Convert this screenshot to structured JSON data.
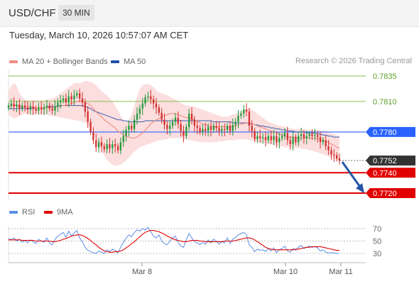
{
  "header": {
    "pair": "USD/CHF",
    "timeframe": "30 MIN",
    "datetime": "Tuesday, March 10, 2026 10:57:07 AM CET"
  },
  "legend": {
    "ma20_label": "MA 20 + Bollinger Bands",
    "ma50_label": "MA 50",
    "credit": "Research © 2026 Trading Central",
    "rsi_label": "RSI",
    "ma9_label": "9MA"
  },
  "colors": {
    "ma20": "#f28b82",
    "ma50": "#1f4fa8",
    "band_fill": "#fbd3d3",
    "up": "#1f9a3a",
    "down": "#d32f2f",
    "resistance": "#8cbe50",
    "pivot": "#2962ff",
    "support": "#e00000",
    "current": "#333333",
    "rsi": "#5b8fe6",
    "rsi_ma": "#e00000",
    "arrow": "#2456a6"
  },
  "chart_data": [
    {
      "type": "line",
      "title": "USD/CHF",
      "ylim": [
        0.7715,
        0.784
      ],
      "x_ticks": [
        "Mar 8",
        "Mar 10",
        "Mar 11"
      ],
      "levels": [
        {
          "label": "0.7835",
          "value": 0.7835,
          "kind": "resistance"
        },
        {
          "label": "0.7810",
          "value": 0.781,
          "kind": "resistance"
        },
        {
          "label": "0.7780",
          "value": 0.778,
          "kind": "pivot"
        },
        {
          "label": "0.7752",
          "value": 0.7752,
          "kind": "current"
        },
        {
          "label": "0.7740",
          "value": 0.774,
          "kind": "support"
        },
        {
          "label": "0.7720",
          "value": 0.772,
          "kind": "support"
        }
      ],
      "close": [
        0.7806,
        0.7808,
        0.7805,
        0.7807,
        0.7803,
        0.7806,
        0.7804,
        0.7802,
        0.7805,
        0.7803,
        0.7801,
        0.7804,
        0.7802,
        0.7804,
        0.7806,
        0.7803,
        0.7801,
        0.7805,
        0.7809,
        0.7811,
        0.7813,
        0.7809,
        0.7815,
        0.7812,
        0.7816,
        0.7818,
        0.7813,
        0.7809,
        0.78,
        0.779,
        0.778,
        0.7772,
        0.7765,
        0.777,
        0.7766,
        0.7763,
        0.7768,
        0.7764,
        0.7768,
        0.7766,
        0.7762,
        0.777,
        0.7776,
        0.7782,
        0.7786,
        0.7783,
        0.7792,
        0.7798,
        0.7803,
        0.7808,
        0.7814,
        0.7815,
        0.7812,
        0.7808,
        0.7804,
        0.7799,
        0.7792,
        0.7787,
        0.7783,
        0.7786,
        0.779,
        0.7794,
        0.7788,
        0.7781,
        0.7776,
        0.7785,
        0.7798,
        0.7792,
        0.7786,
        0.7784,
        0.778,
        0.7783,
        0.7781,
        0.7785,
        0.7782,
        0.7786,
        0.7784,
        0.7781,
        0.7783,
        0.7782,
        0.7786,
        0.7781,
        0.7787,
        0.779,
        0.7796,
        0.7798,
        0.7802,
        0.78,
        0.7786,
        0.7781,
        0.7773,
        0.7776,
        0.7774,
        0.7775,
        0.7772,
        0.7776,
        0.7772,
        0.7776,
        0.777,
        0.7774,
        0.7776,
        0.7779,
        0.7772,
        0.7768,
        0.7775,
        0.777,
        0.7776,
        0.7778,
        0.7774,
        0.7776,
        0.7778,
        0.7776,
        0.7777,
        0.7775,
        0.777,
        0.7772,
        0.7766,
        0.7762,
        0.7758,
        0.7757,
        0.7754,
        0.7752
      ],
      "ma20": [
        0.7805,
        0.7806,
        0.7806,
        0.7806,
        0.7805,
        0.7805,
        0.7805,
        0.7805,
        0.7805,
        0.7804,
        0.7804,
        0.7804,
        0.7804,
        0.7804,
        0.7804,
        0.7804,
        0.7804,
        0.7804,
        0.7805,
        0.7805,
        0.7806,
        0.7806,
        0.7807,
        0.7808,
        0.7809,
        0.781,
        0.781,
        0.781,
        0.7809,
        0.7808,
        0.7806,
        0.7803,
        0.78,
        0.7797,
        0.7795,
        0.7792,
        0.779,
        0.7788,
        0.7786,
        0.7784,
        0.7781,
        0.7779,
        0.7777,
        0.7776,
        0.7775,
        0.7774,
        0.7774,
        0.7775,
        0.7777,
        0.7779,
        0.7782,
        0.7785,
        0.7788,
        0.779,
        0.7792,
        0.7793,
        0.7795,
        0.7796,
        0.7797,
        0.7798,
        0.7798,
        0.7798,
        0.7797,
        0.7796,
        0.7795,
        0.7794,
        0.7794,
        0.7793,
        0.7792,
        0.7791,
        0.7789,
        0.7788,
        0.7787,
        0.7786,
        0.7786,
        0.7785,
        0.7785,
        0.7785,
        0.7785,
        0.7785,
        0.7785,
        0.7785,
        0.7785,
        0.7786,
        0.7787,
        0.7788,
        0.7788,
        0.7789,
        0.7789,
        0.7788,
        0.7787,
        0.7786,
        0.7785,
        0.7784,
        0.7783,
        0.7782,
        0.7781,
        0.778,
        0.7779,
        0.7778,
        0.7777,
        0.7776,
        0.7775,
        0.7775,
        0.7775,
        0.7775,
        0.7774,
        0.7774,
        0.7774,
        0.7774,
        0.7774,
        0.7774,
        0.7774,
        0.7773,
        0.7773,
        0.7772,
        0.7771,
        0.777,
        0.7768,
        0.7767,
        0.7765,
        0.7764
      ],
      "ma50": [
        0.7803,
        0.7803,
        0.7803,
        0.7803,
        0.7803,
        0.7803,
        0.7803,
        0.7803,
        0.7803,
        0.7803,
        0.7804,
        0.7804,
        0.7804,
        0.7804,
        0.7804,
        0.7805,
        0.7805,
        0.7805,
        0.7805,
        0.7806,
        0.7806,
        0.7806,
        0.7806,
        0.7806,
        0.7806,
        0.7806,
        0.7806,
        0.7806,
        0.7805,
        0.7804,
        0.7803,
        0.7801,
        0.78,
        0.7799,
        0.7798,
        0.7797,
        0.7796,
        0.7795,
        0.7794,
        0.7793,
        0.7792,
        0.7792,
        0.7791,
        0.7791,
        0.779,
        0.779,
        0.779,
        0.779,
        0.779,
        0.779,
        0.7791,
        0.7791,
        0.7791,
        0.7791,
        0.7791,
        0.7791,
        0.7791,
        0.7791,
        0.7791,
        0.7791,
        0.7791,
        0.7791,
        0.7791,
        0.7791,
        0.7791,
        0.7791,
        0.7791,
        0.7791,
        0.7791,
        0.7791,
        0.7791,
        0.7791,
        0.7791,
        0.7791,
        0.7791,
        0.779,
        0.779,
        0.779,
        0.779,
        0.779,
        0.779,
        0.779,
        0.7789,
        0.7789,
        0.7789,
        0.7789,
        0.7789,
        0.7789,
        0.7788,
        0.7788,
        0.7787,
        0.7787,
        0.7786,
        0.7786,
        0.7785,
        0.7785,
        0.7784,
        0.7784,
        0.7783,
        0.7783,
        0.7782,
        0.7782,
        0.7781,
        0.7781,
        0.7781,
        0.778,
        0.778,
        0.778,
        0.778,
        0.7779,
        0.7779,
        0.7779,
        0.7779,
        0.7778,
        0.7778,
        0.7777,
        0.7777,
        0.7776,
        0.7776,
        0.7775,
        0.7775,
        0.7775
      ],
      "band_upper": [
        0.782,
        0.7825,
        0.7828,
        0.7825,
        0.7818,
        0.7814,
        0.7812,
        0.7811,
        0.7811,
        0.7811,
        0.7811,
        0.7811,
        0.7811,
        0.7811,
        0.7812,
        0.7812,
        0.7813,
        0.7814,
        0.7816,
        0.7818,
        0.782,
        0.7822,
        0.7824,
        0.7826,
        0.7828,
        0.7828,
        0.7828,
        0.7829,
        0.783,
        0.783,
        0.7829,
        0.7828,
        0.7826,
        0.7823,
        0.782,
        0.7818,
        0.7816,
        0.7813,
        0.781,
        0.7806,
        0.7801,
        0.7796,
        0.7792,
        0.779,
        0.7792,
        0.7797,
        0.7806,
        0.7815,
        0.7822,
        0.7826,
        0.7827,
        0.7827,
        0.7826,
        0.7824,
        0.7821,
        0.7819,
        0.7818,
        0.7817,
        0.7816,
        0.7815,
        0.7813,
        0.7812,
        0.781,
        0.7808,
        0.7807,
        0.7806,
        0.7806,
        0.7805,
        0.7805,
        0.7804,
        0.7803,
        0.7802,
        0.7801,
        0.78,
        0.7799,
        0.7798,
        0.7797,
        0.7796,
        0.7795,
        0.7795,
        0.7795,
        0.7796,
        0.7797,
        0.7798,
        0.7799,
        0.78,
        0.7801,
        0.7802,
        0.7803,
        0.7802,
        0.78,
        0.7798,
        0.7796,
        0.7794,
        0.7792,
        0.779,
        0.7789,
        0.7788,
        0.7787,
        0.7786,
        0.7786,
        0.7785,
        0.7784,
        0.7784,
        0.7783,
        0.7783,
        0.7783,
        0.7783,
        0.7783,
        0.7782,
        0.7782,
        0.7782,
        0.7782,
        0.7782,
        0.7781,
        0.7781,
        0.7781,
        0.778,
        0.7779,
        0.7778,
        0.7777,
        0.7776
      ],
      "band_lower": [
        0.7797,
        0.7795,
        0.7793,
        0.7794,
        0.7796,
        0.7797,
        0.7798,
        0.7798,
        0.7798,
        0.7797,
        0.7797,
        0.7797,
        0.7797,
        0.7797,
        0.7797,
        0.7796,
        0.7796,
        0.7795,
        0.7795,
        0.7794,
        0.7794,
        0.7793,
        0.7793,
        0.7792,
        0.7792,
        0.7791,
        0.7791,
        0.779,
        0.7789,
        0.7787,
        0.7784,
        0.7779,
        0.7773,
        0.7767,
        0.7762,
        0.7757,
        0.7753,
        0.775,
        0.7748,
        0.7747,
        0.7747,
        0.7748,
        0.775,
        0.7752,
        0.7755,
        0.7758,
        0.7761,
        0.7763,
        0.7765,
        0.7766,
        0.7767,
        0.7768,
        0.7769,
        0.777,
        0.7771,
        0.7772,
        0.7772,
        0.7773,
        0.7773,
        0.7774,
        0.7774,
        0.7774,
        0.7774,
        0.7774,
        0.7773,
        0.7773,
        0.7772,
        0.7772,
        0.7771,
        0.7771,
        0.777,
        0.777,
        0.777,
        0.777,
        0.777,
        0.777,
        0.777,
        0.7771,
        0.7771,
        0.7771,
        0.7772,
        0.7772,
        0.7772,
        0.7772,
        0.7773,
        0.7773,
        0.7773,
        0.7773,
        0.7772,
        0.7772,
        0.7771,
        0.777,
        0.777,
        0.7769,
        0.7769,
        0.7768,
        0.7768,
        0.7767,
        0.7767,
        0.7766,
        0.7766,
        0.7765,
        0.7765,
        0.7765,
        0.7764,
        0.7764,
        0.7764,
        0.7764,
        0.7763,
        0.7763,
        0.7762,
        0.7762,
        0.7761,
        0.776,
        0.7759,
        0.7758,
        0.7757,
        0.7756,
        0.7755,
        0.7754,
        0.7753,
        0.7752
      ]
    },
    {
      "type": "line",
      "title": "RSI",
      "ylim": [
        25,
        75
      ],
      "y_ticks": [
        "70",
        "50",
        "30"
      ],
      "series": [
        {
          "name": "RSI",
          "values": [
            54,
            52,
            55,
            50,
            53,
            48,
            51,
            47,
            52,
            49,
            46,
            53,
            50,
            48,
            55,
            47,
            44,
            53,
            58,
            61,
            64,
            56,
            66,
            58,
            63,
            67,
            55,
            49,
            40,
            35,
            33,
            31,
            30,
            34,
            32,
            30,
            36,
            33,
            37,
            35,
            31,
            40,
            48,
            55,
            60,
            57,
            64,
            68,
            66,
            70,
            68,
            72,
            65,
            58,
            55,
            60,
            50,
            46,
            44,
            50,
            55,
            58,
            48,
            42,
            40,
            52,
            62,
            55,
            49,
            47,
            44,
            48,
            45,
            52,
            47,
            53,
            50,
            45,
            49,
            47,
            55,
            46,
            53,
            56,
            60,
            62,
            64,
            60,
            44,
            40,
            33,
            37,
            35,
            36,
            33,
            38,
            34,
            39,
            31,
            36,
            38,
            42,
            34,
            32,
            38,
            35,
            40,
            43,
            38,
            40,
            42,
            40,
            41,
            39,
            34,
            36,
            32,
            31,
            31,
            31,
            30,
            30
          ]
        },
        {
          "name": "9MA",
          "values": [
            52,
            52,
            52,
            52,
            52,
            51,
            51,
            51,
            51,
            51,
            50,
            50,
            50,
            50,
            50,
            50,
            49,
            49,
            50,
            51,
            53,
            54,
            56,
            58,
            59,
            60,
            60,
            59,
            57,
            54,
            51,
            47,
            44,
            40,
            37,
            34,
            33,
            32,
            32,
            33,
            33,
            34,
            36,
            39,
            42,
            46,
            49,
            53,
            57,
            61,
            64,
            66,
            67,
            67,
            66,
            65,
            63,
            61,
            58,
            56,
            54,
            52,
            51,
            50,
            49,
            49,
            50,
            51,
            51,
            51,
            50,
            50,
            49,
            49,
            49,
            49,
            49,
            49,
            49,
            50,
            50,
            50,
            50,
            51,
            52,
            53,
            54,
            55,
            55,
            54,
            52,
            49,
            46,
            43,
            40,
            38,
            37,
            36,
            36,
            36,
            36,
            36,
            36,
            36,
            36,
            37,
            37,
            38,
            39,
            40,
            40,
            41,
            41,
            41,
            41,
            40,
            39,
            38,
            37,
            36,
            35,
            35
          ]
        }
      ]
    }
  ]
}
